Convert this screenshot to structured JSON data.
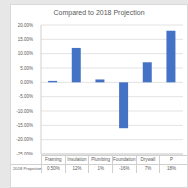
{
  "chart_data": {
    "type": "bar",
    "title": "Compared to 2018 Projection",
    "categories": [
      "Framing",
      "Insulation",
      "Plumbing",
      "Foundation",
      "Drywall",
      "P"
    ],
    "series": [
      {
        "name": "2018 Projection",
        "color": "#4472c4",
        "values": [
          0.5,
          12,
          1,
          -16,
          7,
          18
        ],
        "value_labels": [
          "0.50%",
          "12%",
          "1%",
          "-16%",
          "7%",
          "18%"
        ]
      }
    ],
    "ylim": [
      -25,
      20
    ],
    "yticks": [
      {
        "value": -25,
        "label": "-25.00%"
      },
      {
        "value": -20,
        "label": "-20.00%"
      },
      {
        "value": -15,
        "label": "-15.00%"
      },
      {
        "value": -10,
        "label": "-10.00%"
      },
      {
        "value": -5,
        "label": "-5.00%"
      },
      {
        "value": 0,
        "label": "0.00%"
      },
      {
        "value": 5,
        "label": "5.00%"
      },
      {
        "value": 10,
        "label": "10.00%"
      },
      {
        "value": 15,
        "label": "15.00%"
      },
      {
        "value": 20,
        "label": "20.00%"
      }
    ],
    "grid": true
  }
}
